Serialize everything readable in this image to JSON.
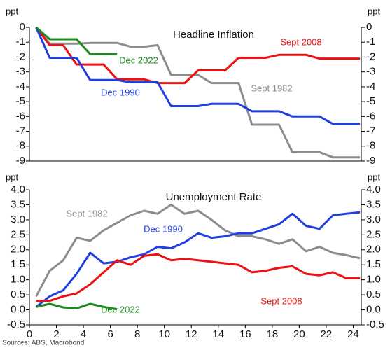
{
  "chart_data": [
    {
      "type": "line",
      "title": "Headline Inflation",
      "y_label": "ppt",
      "y2_label": "ppt",
      "x": [
        0.5,
        1.5,
        2.5,
        3.5,
        4.5,
        5.5,
        6.5,
        7.5,
        8.5,
        9.5,
        10.5,
        11.5,
        12.5,
        13.5,
        14.5,
        15.5,
        16.5,
        17.5,
        18.5,
        19.5,
        20.5,
        21.5,
        22.5,
        23.5,
        24.5
      ],
      "xlim": [
        0,
        24.6
      ],
      "ylim": [
        -9,
        0
      ],
      "yticks": [
        0,
        -1,
        -2,
        -3,
        -4,
        -5,
        -6,
        -7,
        -8,
        -9
      ],
      "y2lim": [
        -9,
        0
      ],
      "y2ticks": [
        0,
        -1,
        -2,
        -3,
        -4,
        -5,
        -6,
        -7,
        -8,
        -9
      ],
      "series": [
        {
          "name": "Sept 1982",
          "color": "#8c8c8c",
          "values": [
            0,
            -1.1,
            -1.1,
            -1.1,
            -1.05,
            -1.05,
            -1.05,
            -1.3,
            -1.3,
            -1.2,
            -3.2,
            -3.2,
            -3.2,
            -3.75,
            -3.75,
            -3.75,
            -6.55,
            -6.55,
            -6.55,
            -8.4,
            -8.4,
            -8.4,
            -8.75,
            -8.75,
            -8.75
          ]
        },
        {
          "name": "Sept 2008",
          "color": "#ee1111",
          "values": [
            0,
            -1.2,
            -1.2,
            -2.5,
            -2.5,
            -2.5,
            -3.5,
            -3.5,
            -3.5,
            -3.75,
            -3.75,
            -3.75,
            -2.9,
            -2.9,
            -2.9,
            -2.05,
            -2.05,
            -2.05,
            -1.85,
            -1.85,
            -1.85,
            -2.1,
            -2.1,
            -2.1,
            -2.1
          ]
        },
        {
          "name": "Dec 1990",
          "color": "#1f3fe0",
          "values": [
            0,
            -2.05,
            -2.05,
            -2.05,
            -3.55,
            -3.55,
            -3.55,
            -3.7,
            -3.7,
            -3.7,
            -5.3,
            -5.3,
            -5.3,
            -5.15,
            -5.15,
            -5.15,
            -5.65,
            -5.65,
            -5.65,
            -6.0,
            -6.0,
            -6.0,
            -6.5,
            -6.5,
            -6.5
          ]
        },
        {
          "name": "Dec 2022",
          "color": "#1a8a1a",
          "values": [
            0,
            -0.8,
            -0.8,
            -0.8,
            -1.8,
            -1.8,
            -1.8,
            null,
            null,
            null,
            null,
            null,
            null,
            null,
            null,
            null,
            null,
            null,
            null,
            null,
            null,
            null,
            null,
            null,
            null
          ]
        }
      ]
    },
    {
      "type": "line",
      "title": "Unemployment Rate",
      "y_label": "ppt",
      "y2_label": "ppt",
      "x": [
        0.5,
        1.5,
        2.5,
        3.5,
        4.5,
        5.5,
        6.5,
        7.5,
        8.5,
        9.5,
        10.5,
        11.5,
        12.5,
        13.5,
        14.5,
        15.5,
        16.5,
        17.5,
        18.5,
        19.5,
        20.5,
        21.5,
        22.5,
        23.5,
        24.5
      ],
      "xlim": [
        0,
        24.6
      ],
      "xticks": [
        0,
        2,
        4,
        6,
        8,
        10,
        12,
        14,
        16,
        18,
        20,
        22,
        24
      ],
      "ylim": [
        -0.5,
        4
      ],
      "yticks": [
        {
          "value": 4,
          "label": "4.0"
        },
        3.5,
        {
          "value": 3,
          "label": "3.0"
        },
        2.5,
        {
          "value": 2,
          "label": "2.0"
        },
        1.5,
        {
          "value": 1,
          "label": "1.0"
        },
        0.5,
        {
          "value": 0,
          "label": "0.0"
        },
        -0.5
      ],
      "y2lim": [
        -0.5,
        4
      ],
      "y2ticks": [
        {
          "value": 4,
          "label": "4.0"
        },
        3.5,
        {
          "value": 3,
          "label": "3.0"
        },
        2.5,
        {
          "value": 2,
          "label": "2.0"
        },
        1.5,
        {
          "value": 1,
          "label": "1.0"
        },
        0.5,
        {
          "value": 0,
          "label": "0.0"
        },
        -0.5
      ],
      "series": [
        {
          "name": "Sept 1982",
          "color": "#8c8c8c",
          "values": [
            0.45,
            1.3,
            1.65,
            2.4,
            2.3,
            2.65,
            2.9,
            3.15,
            3.3,
            3.2,
            3.5,
            3.2,
            3.3,
            3.0,
            2.65,
            2.45,
            2.45,
            2.35,
            2.2,
            2.35,
            1.95,
            2.1,
            1.9,
            1.82,
            1.72
          ]
        },
        {
          "name": "Dec 1990",
          "color": "#1f3fe0",
          "values": [
            0.1,
            0.45,
            0.65,
            1.2,
            1.9,
            1.55,
            1.6,
            1.75,
            1.85,
            2.1,
            2.05,
            2.25,
            2.55,
            2.4,
            2.45,
            2.55,
            2.55,
            2.7,
            2.85,
            3.2,
            2.8,
            2.7,
            3.15,
            3.2,
            3.25
          ]
        },
        {
          "name": "Sept 2008",
          "color": "#ee1111",
          "values": [
            0.3,
            0.3,
            0.45,
            0.55,
            0.85,
            1.25,
            1.65,
            1.5,
            1.8,
            1.85,
            1.65,
            1.7,
            1.65,
            1.6,
            1.55,
            1.5,
            1.25,
            1.3,
            1.4,
            1.45,
            1.2,
            1.15,
            1.25,
            1.05,
            1.05
          ]
        },
        {
          "name": "Dec 2022",
          "color": "#1a8a1a",
          "values": [
            0.1,
            0.2,
            0.08,
            0.05,
            0.2,
            0.1,
            0.02,
            null,
            null,
            null,
            null,
            null,
            null,
            null,
            null,
            null,
            null,
            null,
            null,
            null,
            null,
            null,
            null,
            null,
            null
          ]
        }
      ]
    }
  ],
  "source": "Sources: ABS, Macrobond"
}
